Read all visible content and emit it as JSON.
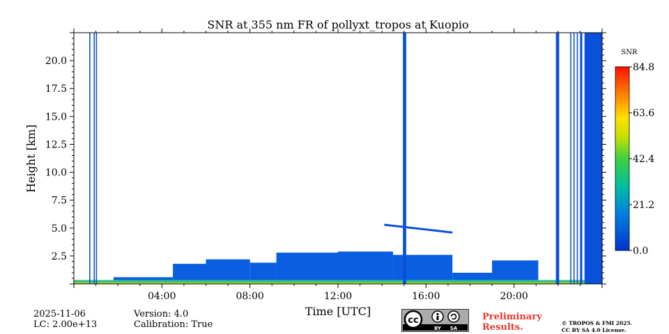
{
  "chart_data": {
    "type": "heatmap",
    "title": "SNR at 355 nm FR of pollyxt_tropos at Kuopio",
    "xlabel": "Time [UTC]",
    "ylabel": "Height [km]",
    "x_range_hours": [
      0,
      24
    ],
    "ylim": [
      0,
      22.5
    ],
    "x_ticks": [
      {
        "value": 4,
        "label": "04:00"
      },
      {
        "value": 8,
        "label": "08:00"
      },
      {
        "value": 12,
        "label": "12:00"
      },
      {
        "value": 16,
        "label": "16:00"
      },
      {
        "value": 20,
        "label": "20:00"
      }
    ],
    "y_ticks": [
      {
        "value": 2.5,
        "label": "2.5"
      },
      {
        "value": 5.0,
        "label": "5.0"
      },
      {
        "value": 7.5,
        "label": "7.5"
      },
      {
        "value": 10.0,
        "label": "10.0"
      },
      {
        "value": 12.5,
        "label": "12.5"
      },
      {
        "value": 15.0,
        "label": "15.0"
      },
      {
        "value": 17.5,
        "label": "17.5"
      },
      {
        "value": 20.0,
        "label": "20.0"
      }
    ],
    "colorbar": {
      "label": "SNR",
      "min": 0.0,
      "max": 84.8,
      "ticks": [
        {
          "value": 0.0,
          "label": "0.0"
        },
        {
          "value": 21.2,
          "label": "21.2"
        },
        {
          "value": 42.4,
          "label": "42.4"
        },
        {
          "value": 63.6,
          "label": "63.6"
        },
        {
          "value": 84.8,
          "label": "84.8"
        }
      ]
    },
    "full_column_stripes_hours": [
      [
        0.7,
        0.75
      ],
      [
        0.9,
        0.95
      ],
      [
        1.0,
        1.05
      ],
      [
        14.95,
        15.1
      ],
      [
        21.9,
        22.05
      ],
      [
        22.55,
        22.6
      ],
      [
        22.7,
        22.75
      ],
      [
        22.85,
        22.9
      ],
      [
        23.0,
        23.1
      ],
      [
        23.2,
        24.0
      ]
    ],
    "boundary_layer_tops_km": [
      {
        "start": 0.0,
        "end": 1.8,
        "top": 0.3
      },
      {
        "start": 1.8,
        "end": 4.5,
        "top": 0.6
      },
      {
        "start": 4.5,
        "end": 6.0,
        "top": 1.8
      },
      {
        "start": 6.0,
        "end": 8.0,
        "top": 2.2
      },
      {
        "start": 8.0,
        "end": 9.2,
        "top": 1.9
      },
      {
        "start": 9.2,
        "end": 12.0,
        "top": 2.8
      },
      {
        "start": 12.0,
        "end": 14.5,
        "top": 2.9
      },
      {
        "start": 14.5,
        "end": 17.2,
        "top": 2.6
      },
      {
        "start": 17.2,
        "end": 19.0,
        "top": 1.0
      },
      {
        "start": 19.0,
        "end": 21.1,
        "top": 2.1
      },
      {
        "start": 21.1,
        "end": 24.0,
        "top": 0.3
      }
    ],
    "cloud_layer": {
      "start_hours": 14.1,
      "end_hours": 17.2,
      "height_start_km": 5.3,
      "height_end_km": 4.6
    }
  },
  "footer": {
    "date": "2025-11-06",
    "lc": "LC: 2.00e+13",
    "version": "Version: 4.0",
    "calibration": "Calibration: True",
    "preliminary_line1": "Preliminary",
    "preliminary_line2": "Results.",
    "copyright_line1": "© TROPOS & FMI 2025.",
    "copyright_line2": "CC BY SA 4.0 License.",
    "license_badge": {
      "cc": "cc",
      "by": "BY",
      "sa": "SA"
    }
  }
}
